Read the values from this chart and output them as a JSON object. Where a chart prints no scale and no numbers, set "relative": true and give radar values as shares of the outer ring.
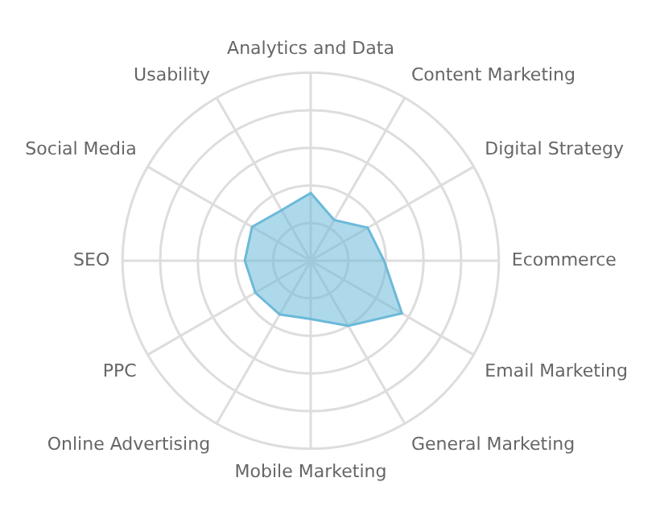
{
  "chart_data": {
    "type": "radar",
    "relative": true,
    "grid": true,
    "legend": false,
    "marker": "none",
    "categories": [
      "Analytics and Data",
      "Content Marketing",
      "Digital Strategy",
      "Ecommerce",
      "Email Marketing",
      "General Marketing",
      "Mobile Marketing",
      "Online Advertising",
      "PPC",
      "SEO",
      "Social Media",
      "Usability"
    ],
    "series": [
      {
        "color": "#6cb9d9",
        "values": [
          0.36,
          0.25,
          0.35,
          0.39,
          0.56,
          0.4,
          0.31,
          0.33,
          0.34,
          0.35,
          0.36,
          0.31
        ]
      }
    ]
  }
}
